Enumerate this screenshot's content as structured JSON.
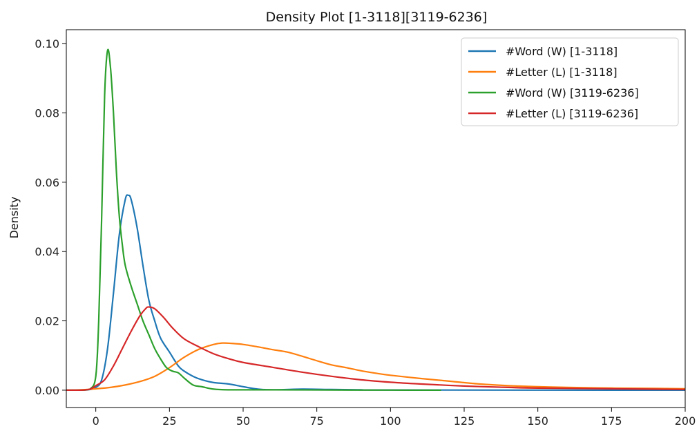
{
  "chart_data": {
    "type": "line",
    "title": "Density Plot [1-3118][3119-6236]",
    "xlabel": "",
    "ylabel": "Density",
    "xlim": [
      -10,
      200
    ],
    "ylim": [
      -0.005,
      0.104
    ],
    "x_ticks": [
      0,
      25,
      50,
      75,
      100,
      125,
      150,
      175,
      200
    ],
    "y_ticks": [
      0.0,
      0.02,
      0.04,
      0.06,
      0.08,
      0.1
    ],
    "x_tick_labels": [
      "0",
      "25",
      "50",
      "75",
      "100",
      "125",
      "150",
      "175",
      "200"
    ],
    "y_tick_labels": [
      "0.00",
      "0.02",
      "0.04",
      "0.06",
      "0.08",
      "0.10"
    ],
    "grid": false,
    "legend_position": "top-right",
    "series": [
      {
        "name": "#Word (W) [1-3118]",
        "color": "#1f77b4",
        "points": [
          [
            -10,
            0
          ],
          [
            -5,
            0
          ],
          [
            -2,
            0.0002
          ],
          [
            0,
            0.0008
          ],
          [
            2,
            0.003
          ],
          [
            4,
            0.012
          ],
          [
            6,
            0.028
          ],
          [
            8,
            0.045
          ],
          [
            10,
            0.055
          ],
          [
            11,
            0.0562
          ],
          [
            12,
            0.055
          ],
          [
            14,
            0.047
          ],
          [
            16,
            0.036
          ],
          [
            18,
            0.026
          ],
          [
            20,
            0.02
          ],
          [
            22,
            0.015
          ],
          [
            25,
            0.011
          ],
          [
            28,
            0.007
          ],
          [
            30,
            0.0055
          ],
          [
            33,
            0.004
          ],
          [
            36,
            0.003
          ],
          [
            40,
            0.0022
          ],
          [
            45,
            0.0018
          ],
          [
            50,
            0.001
          ],
          [
            55,
            0.0003
          ],
          [
            60,
            0.0001
          ],
          [
            70,
            0.0003
          ],
          [
            80,
            0.0002
          ],
          [
            90,
            0.0001
          ],
          [
            100,
            5e-05
          ],
          [
            200,
            0
          ]
        ]
      },
      {
        "name": "#Letter (L) [1-3118]",
        "color": "#ff7f0e",
        "points": [
          [
            -10,
            0
          ],
          [
            -5,
            0.0001
          ],
          [
            0,
            0.0004
          ],
          [
            5,
            0.0008
          ],
          [
            10,
            0.0015
          ],
          [
            15,
            0.0025
          ],
          [
            20,
            0.004
          ],
          [
            25,
            0.0065
          ],
          [
            30,
            0.0095
          ],
          [
            35,
            0.0118
          ],
          [
            40,
            0.0132
          ],
          [
            43,
            0.0136
          ],
          [
            46,
            0.0135
          ],
          [
            50,
            0.0132
          ],
          [
            55,
            0.0125
          ],
          [
            60,
            0.0117
          ],
          [
            65,
            0.011
          ],
          [
            70,
            0.0098
          ],
          [
            75,
            0.0085
          ],
          [
            80,
            0.0073
          ],
          [
            85,
            0.0065
          ],
          [
            90,
            0.0056
          ],
          [
            95,
            0.0049
          ],
          [
            100,
            0.0043
          ],
          [
            110,
            0.0034
          ],
          [
            120,
            0.0026
          ],
          [
            130,
            0.0018
          ],
          [
            140,
            0.0013
          ],
          [
            150,
            0.001
          ],
          [
            160,
            0.0008
          ],
          [
            175,
            0.0006
          ],
          [
            190,
            0.0005
          ],
          [
            200,
            0.0004
          ]
        ]
      },
      {
        "name": "#Word (W) [3119-6236]",
        "color": "#2ca02c",
        "points": [
          [
            -10,
            0
          ],
          [
            -5,
            0
          ],
          [
            -2,
            0.0003
          ],
          [
            0,
            0.004
          ],
          [
            1,
            0.02
          ],
          [
            2,
            0.05
          ],
          [
            3,
            0.085
          ],
          [
            4,
            0.098
          ],
          [
            5,
            0.093
          ],
          [
            6,
            0.08
          ],
          [
            7,
            0.063
          ],
          [
            8,
            0.05
          ],
          [
            9,
            0.042
          ],
          [
            10,
            0.036
          ],
          [
            12,
            0.03
          ],
          [
            14,
            0.025
          ],
          [
            16,
            0.02
          ],
          [
            18,
            0.016
          ],
          [
            20,
            0.012
          ],
          [
            22,
            0.009
          ],
          [
            24,
            0.0065
          ],
          [
            26,
            0.0055
          ],
          [
            28,
            0.005
          ],
          [
            30,
            0.0035
          ],
          [
            33,
            0.0015
          ],
          [
            36,
            0.001
          ],
          [
            40,
            0.0003
          ],
          [
            45,
            0.0001
          ],
          [
            60,
            0.0001
          ],
          [
            80,
            5e-05
          ],
          [
            100,
            2e-05
          ],
          [
            117,
            0
          ]
        ]
      },
      {
        "name": "#Letter (L) [3119-6236]",
        "color": "#d62728",
        "points": [
          [
            -10,
            0
          ],
          [
            -5,
            0
          ],
          [
            -2,
            0.0003
          ],
          [
            0,
            0.0013
          ],
          [
            3,
            0.003
          ],
          [
            6,
            0.007
          ],
          [
            9,
            0.012
          ],
          [
            12,
            0.017
          ],
          [
            15,
            0.0215
          ],
          [
            17,
            0.0236
          ],
          [
            18,
            0.024
          ],
          [
            20,
            0.0235
          ],
          [
            23,
            0.021
          ],
          [
            26,
            0.018
          ],
          [
            30,
            0.0148
          ],
          [
            35,
            0.0125
          ],
          [
            40,
            0.0105
          ],
          [
            45,
            0.0091
          ],
          [
            50,
            0.008
          ],
          [
            60,
            0.0066
          ],
          [
            70,
            0.0052
          ],
          [
            80,
            0.004
          ],
          [
            90,
            0.003
          ],
          [
            100,
            0.0023
          ],
          [
            110,
            0.0018
          ],
          [
            125,
            0.0012
          ],
          [
            140,
            0.0008
          ],
          [
            150,
            0.0006
          ],
          [
            175,
            0.0004
          ],
          [
            200,
            0.0002
          ]
        ]
      }
    ]
  }
}
